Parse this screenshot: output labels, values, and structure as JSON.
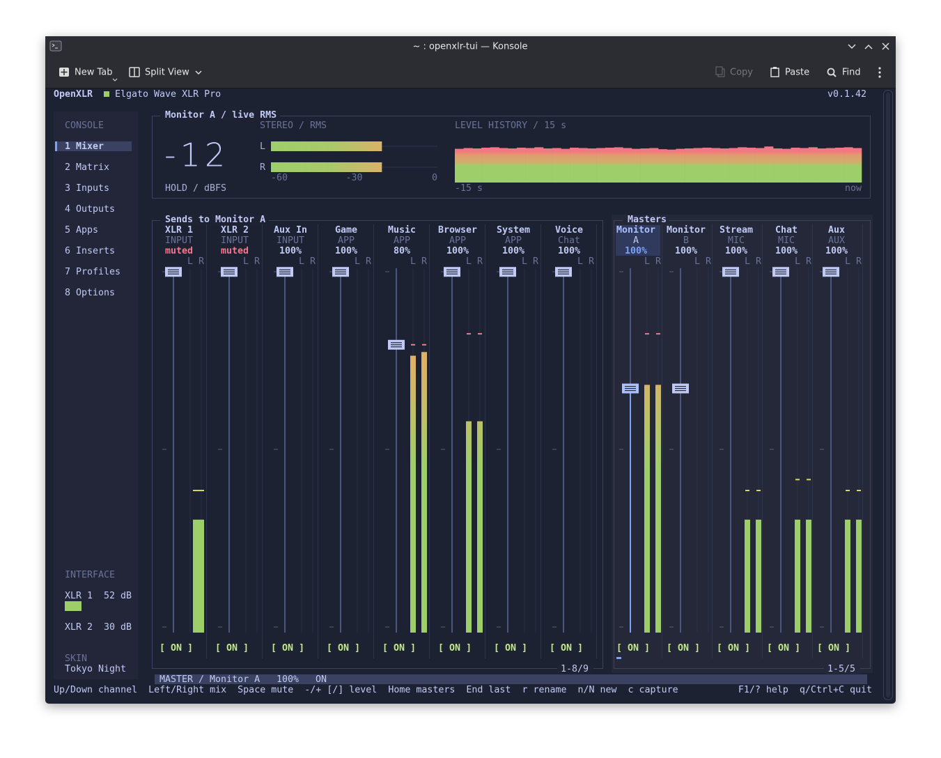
{
  "window": {
    "title": "~ : openxlr-tui — Konsole"
  },
  "toolbar": {
    "new_tab": "New Tab",
    "split_view": "Split View",
    "copy": "Copy",
    "paste": "Paste",
    "find": "Find"
  },
  "header": {
    "app": "OpenXLR",
    "device": "Elgato Wave XLR Pro",
    "version": "v0.1.42"
  },
  "sidebar": {
    "section": "CONSOLE",
    "items": [
      "1 Mixer",
      "2 Matrix",
      "3 Inputs",
      "4 Outputs",
      "5 Apps",
      "6 Inserts",
      "7 Profiles",
      "8 Options"
    ],
    "interface_title": "INTERFACE",
    "interface": [
      {
        "name": "XLR 1",
        "gain": "52 dB",
        "signal": 20
      },
      {
        "name": "XLR 2",
        "gain": "30 dB",
        "signal": 0
      }
    ],
    "skin_title": "SKIN",
    "skin": "Tokyo Night"
  },
  "monitor": {
    "title": "Monitor A / live RMS",
    "readout": -12,
    "readout_label": "HOLD / dBFS",
    "stereo_title": "STEREO / RMS",
    "channels": [
      {
        "name": "L",
        "value": -20
      },
      {
        "name": "R",
        "value": -20
      }
    ],
    "xlim": [
      -60,
      0
    ],
    "xticks": [
      -60,
      -30,
      0
    ],
    "history_title": "LEVEL HISTORY / 15 s",
    "history_start": "-15 s",
    "history_end": "now",
    "history": [
      88,
      90,
      89,
      91,
      92,
      90,
      89,
      91,
      90,
      92,
      89,
      90,
      88,
      91,
      90,
      89,
      90,
      91,
      92,
      90,
      88,
      89,
      90,
      87,
      86,
      88,
      89,
      90,
      91,
      90,
      89,
      90,
      92,
      91,
      90,
      94,
      89,
      88,
      91,
      90,
      92,
      89,
      90,
      91,
      92,
      90
    ]
  },
  "meter_labels": [
    "L",
    "R"
  ],
  "sends": {
    "title": "Sends to Monitor A",
    "page": "1-8/9",
    "channels": [
      {
        "name": "XLR 1",
        "type": "INPUT",
        "level": "muted",
        "fader": 99,
        "meters": [
          31
        ],
        "peak": 39,
        "switch": "[ ON ]"
      },
      {
        "name": "XLR 2",
        "type": "INPUT",
        "level": "muted",
        "fader": 99,
        "meters": [],
        "switch": "[ ON ]"
      },
      {
        "name": "Aux In",
        "type": "INPUT",
        "level": "100%",
        "fader": 99,
        "meters": [],
        "switch": "[ ON ]"
      },
      {
        "name": "Game",
        "type": "APP",
        "level": "100%",
        "fader": 99,
        "meters": [],
        "switch": "[ ON ]"
      },
      {
        "name": "Music",
        "type": "APP",
        "level": "80%",
        "fader": 79,
        "meters": [
          76,
          77
        ],
        "peak": 79,
        "switch": "[ ON ]"
      },
      {
        "name": "Browser",
        "type": "APP",
        "level": "100%",
        "fader": 99,
        "meters": [
          58,
          58
        ],
        "peak": 82,
        "switch": "[ ON ]"
      },
      {
        "name": "System",
        "type": "APP",
        "level": "100%",
        "fader": 99,
        "meters": [],
        "switch": "[ ON ]"
      },
      {
        "name": "Voice",
        "type": "Chat",
        "level": "100%",
        "fader": 99,
        "meters": [],
        "switch": "[ ON ]"
      }
    ]
  },
  "masters": {
    "title": "Masters",
    "page": "1-5/5",
    "channels": [
      {
        "name": "Monitor",
        "type": "A",
        "level": "100%",
        "fader": 67,
        "meters": [
          68,
          68
        ],
        "peak": 82,
        "switch": "[ ON ]"
      },
      {
        "name": "Monitor",
        "type": "B",
        "level": "100%",
        "fader": 67,
        "meters": [],
        "switch": "[ ON ]"
      },
      {
        "name": "Stream",
        "type": "MIC",
        "level": "100%",
        "fader": 99,
        "meters": [
          31,
          31
        ],
        "peak": 39,
        "switch": "[ ON ]"
      },
      {
        "name": "Chat",
        "type": "MIC",
        "level": "100%",
        "fader": 99,
        "meters": [
          31,
          31
        ],
        "peak": 42,
        "switch": "[ ON ]"
      },
      {
        "name": "Aux",
        "type": "AUX",
        "level": "100%",
        "fader": 99,
        "meters": [
          31,
          31
        ],
        "peak": 39,
        "switch": "[ ON ]"
      }
    ]
  },
  "status": {
    "target": "MASTER / Monitor A",
    "level": "100%",
    "state": "ON"
  },
  "help": {
    "keys": [
      "Up/Down channel",
      "Left/Right mix",
      "Space mute",
      "-/+ [/] level",
      "Home masters",
      "End last",
      "r rename",
      "n/N new",
      "c capture"
    ],
    "right": [
      "F1/? help",
      "q/Ctrl+C quit"
    ]
  }
}
